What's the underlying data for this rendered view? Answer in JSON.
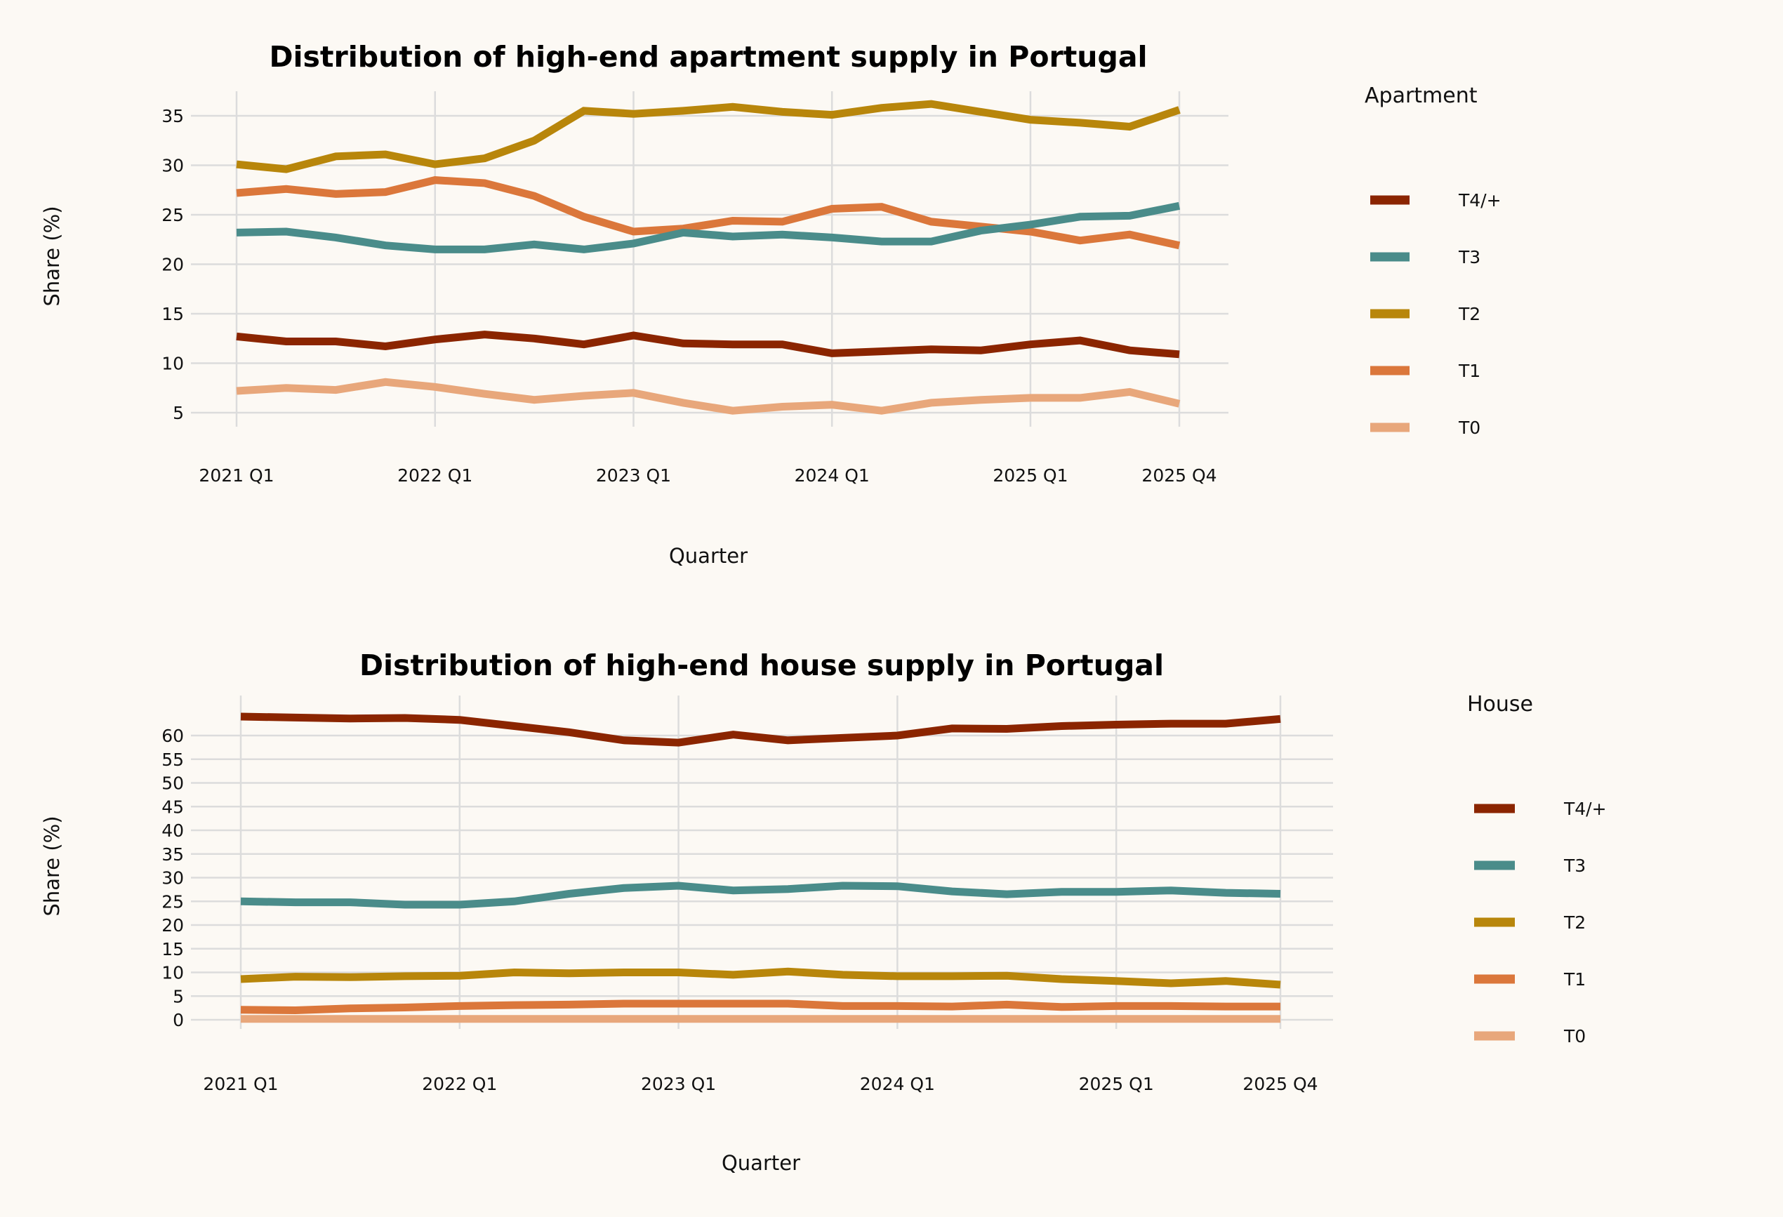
{
  "chart_data": [
    {
      "type": "line",
      "title": "Distribution of high-end apartment supply in Portugal",
      "xlabel": "Quarter",
      "ylabel": "Share (%)",
      "legend_title": "Apartment",
      "legend_position": "right",
      "grid": true,
      "x": [
        "2021 Q1",
        "2021 Q2",
        "2021 Q3",
        "2021 Q4",
        "2022 Q1",
        "2022 Q2",
        "2022 Q3",
        "2022 Q4",
        "2023 Q1",
        "2023 Q2",
        "2023 Q3",
        "2023 Q4",
        "2024 Q1",
        "2024 Q2",
        "2024 Q3",
        "2024 Q4",
        "2025 Q1",
        "2025 Q2",
        "2025 Q3",
        "2025 Q4"
      ],
      "x_tick_labels": [
        "2021 Q1",
        "2022 Q1",
        "2023 Q1",
        "2024 Q1",
        "2025 Q1",
        "2025 Q4"
      ],
      "y_ticks": [
        5,
        10,
        15,
        20,
        25,
        30,
        35
      ],
      "ylim": [
        3.5,
        37.5
      ],
      "series": [
        {
          "name": "T4/+",
          "color": "#8b2500",
          "values": [
            12.7,
            12.2,
            12.2,
            11.7,
            12.4,
            12.9,
            12.5,
            11.9,
            12.8,
            12.0,
            11.9,
            11.9,
            11.0,
            11.2,
            11.4,
            11.3,
            11.9,
            12.3,
            11.3,
            10.9
          ]
        },
        {
          "name": "T3",
          "color": "#4a8c8a",
          "values": [
            23.2,
            23.3,
            22.7,
            21.9,
            21.5,
            21.5,
            22.0,
            21.5,
            22.1,
            23.2,
            22.8,
            23.0,
            22.7,
            22.3,
            22.3,
            23.4,
            24.0,
            24.8,
            24.9,
            25.9
          ]
        },
        {
          "name": "T2",
          "color": "#b8860b",
          "values": [
            30.1,
            29.6,
            30.9,
            31.1,
            30.1,
            30.7,
            32.5,
            35.5,
            35.2,
            35.5,
            35.9,
            35.4,
            35.1,
            35.8,
            36.2,
            35.4,
            34.6,
            34.3,
            33.9,
            35.6
          ]
        },
        {
          "name": "T1",
          "color": "#db773b",
          "values": [
            27.2,
            27.6,
            27.1,
            27.3,
            28.5,
            28.2,
            26.9,
            24.8,
            23.3,
            23.6,
            24.4,
            24.3,
            25.6,
            25.8,
            24.3,
            23.8,
            23.3,
            22.4,
            23.0,
            21.9
          ]
        },
        {
          "name": "T0",
          "color": "#e8a77b",
          "values": [
            7.2,
            7.5,
            7.3,
            8.1,
            7.6,
            6.9,
            6.3,
            6.7,
            7.0,
            6.0,
            5.2,
            5.6,
            5.8,
            5.2,
            6.0,
            6.3,
            6.5,
            6.5,
            7.1,
            5.9
          ]
        }
      ]
    },
    {
      "type": "line",
      "title": "Distribution of high-end house supply in Portugal",
      "xlabel": "Quarter",
      "ylabel": "Share (%)",
      "legend_title": "House",
      "legend_position": "right",
      "grid": true,
      "x": [
        "2021 Q1",
        "2021 Q2",
        "2021 Q3",
        "2021 Q4",
        "2022 Q1",
        "2022 Q2",
        "2022 Q3",
        "2022 Q4",
        "2023 Q1",
        "2023 Q2",
        "2023 Q3",
        "2023 Q4",
        "2024 Q1",
        "2024 Q2",
        "2024 Q3",
        "2024 Q4",
        "2025 Q1",
        "2025 Q2",
        "2025 Q3",
        "2025 Q4"
      ],
      "x_tick_labels": [
        "2021 Q1",
        "2022 Q1",
        "2023 Q1",
        "2024 Q1",
        "2025 Q1",
        "2025 Q4"
      ],
      "y_ticks": [
        0,
        5,
        10,
        15,
        20,
        25,
        30,
        35,
        40,
        45,
        50,
        55,
        60
      ],
      "ylim": [
        -1,
        65
      ],
      "series": [
        {
          "name": "T4/+",
          "color": "#8b2500",
          "values": [
            64.0,
            63.8,
            63.6,
            63.7,
            63.3,
            62.0,
            60.7,
            59.0,
            58.5,
            60.2,
            59.0,
            59.5,
            60.0,
            61.5,
            61.4,
            62.0,
            62.3,
            62.5,
            62.5,
            63.5
          ]
        },
        {
          "name": "T3",
          "color": "#4a8c8a",
          "values": [
            25.0,
            24.8,
            24.8,
            24.3,
            24.3,
            25.0,
            26.6,
            27.8,
            28.3,
            27.3,
            27.6,
            28.3,
            28.2,
            27.1,
            26.5,
            27.0,
            27.0,
            27.3,
            26.8,
            26.6
          ]
        },
        {
          "name": "T2",
          "color": "#b8860b",
          "values": [
            8.6,
            9.1,
            9.0,
            9.2,
            9.3,
            10.0,
            9.8,
            10.0,
            10.0,
            9.5,
            10.2,
            9.5,
            9.2,
            9.2,
            9.3,
            8.6,
            8.2,
            7.7,
            8.2,
            7.4
          ]
        },
        {
          "name": "T1",
          "color": "#db773b",
          "values": [
            2.1,
            2.0,
            2.4,
            2.6,
            2.9,
            3.1,
            3.2,
            3.4,
            3.4,
            3.4,
            3.4,
            2.9,
            2.9,
            2.8,
            3.2,
            2.7,
            2.9,
            2.9,
            2.8,
            2.8
          ]
        },
        {
          "name": "T0",
          "color": "#e8a77b",
          "values": [
            0.2,
            0.2,
            0.2,
            0.2,
            0.2,
            0.2,
            0.2,
            0.2,
            0.2,
            0.2,
            0.2,
            0.2,
            0.2,
            0.2,
            0.2,
            0.2,
            0.2,
            0.2,
            0.2,
            0.2
          ]
        }
      ]
    }
  ]
}
